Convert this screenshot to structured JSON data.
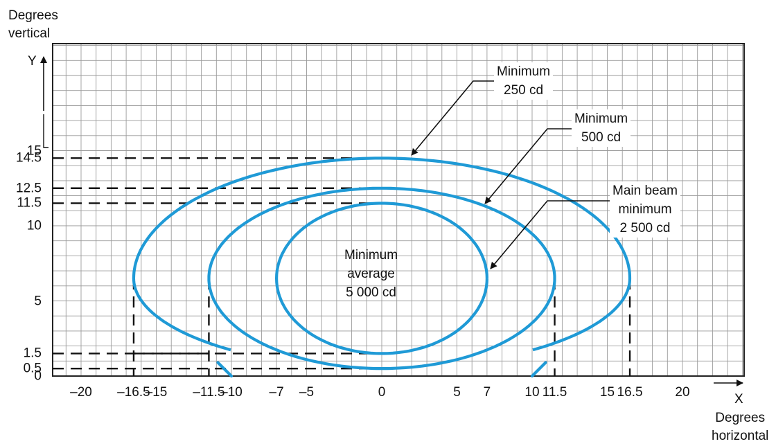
{
  "axis": {
    "y_title_line1": "Degrees",
    "y_title_line2": "vertical",
    "y_letter": "Y",
    "x_letter": "X",
    "x_title_line1": "Degrees",
    "x_title_line2": "horizontal"
  },
  "x_ticks": [
    {
      "value": -20,
      "label": "–20"
    },
    {
      "value": -16.5,
      "label": "–16.5"
    },
    {
      "value": -15,
      "label": "–15"
    },
    {
      "value": -11.5,
      "label": "–11.5"
    },
    {
      "value": -10,
      "label": "–10"
    },
    {
      "value": -7,
      "label": "–7"
    },
    {
      "value": -5,
      "label": "–5"
    },
    {
      "value": 0,
      "label": "0"
    },
    {
      "value": 5,
      "label": "5"
    },
    {
      "value": 7,
      "label": "7"
    },
    {
      "value": 10,
      "label": "10"
    },
    {
      "value": 11.5,
      "label": "11.5"
    },
    {
      "value": 15,
      "label": "15"
    },
    {
      "value": 16.5,
      "label": "16.5"
    },
    {
      "value": 20,
      "label": "20"
    }
  ],
  "y_ticks": [
    {
      "value": 0,
      "label": "0"
    },
    {
      "value": 0.5,
      "label": "0.5"
    },
    {
      "value": 1.5,
      "label": "1.5"
    },
    {
      "value": 5,
      "label": "5"
    },
    {
      "value": 10,
      "label": "10"
    },
    {
      "value": 11.5,
      "label": "11.5"
    },
    {
      "value": 12.5,
      "label": "12.5"
    },
    {
      "value": 14.5,
      "label": "14.5"
    },
    {
      "value": 15,
      "label": "15"
    }
  ],
  "contours": [
    {
      "name": "Minimum 250 cd",
      "x_min": -16.5,
      "x_max": 16.5,
      "y_top": 14.5,
      "y_mid": 6.5,
      "y_bottom_at_center": 0.5,
      "opening": [
        -10,
        10
      ],
      "open_bottom": true
    },
    {
      "name": "Minimum 500 cd",
      "x_min": -11.5,
      "x_max": 11.5,
      "y_top": 12.5,
      "y_mid": 6.5,
      "y_bottom_at_center": 0.5,
      "open_bottom": false
    },
    {
      "name": "Main beam minimum 2 500 cd",
      "x_min": -7,
      "x_max": 7,
      "y_top": 11.5,
      "y_mid": 6.5,
      "y_bottom_at_center": 1.5,
      "open_bottom": false
    }
  ],
  "callouts": {
    "c250": {
      "line1": "Minimum",
      "line2": "250 cd"
    },
    "c500": {
      "line1": "Minimum",
      "line2": "500 cd"
    },
    "c2500": {
      "line1": "Main beam",
      "line2": "minimum",
      "line3": "2 500 cd"
    },
    "center": {
      "line1": "Minimum",
      "line2": "average",
      "line3": "5 000 cd"
    }
  },
  "colors": {
    "contour": "#1f9ad6",
    "grid": "#9a9a9a",
    "text": "#111111"
  }
}
